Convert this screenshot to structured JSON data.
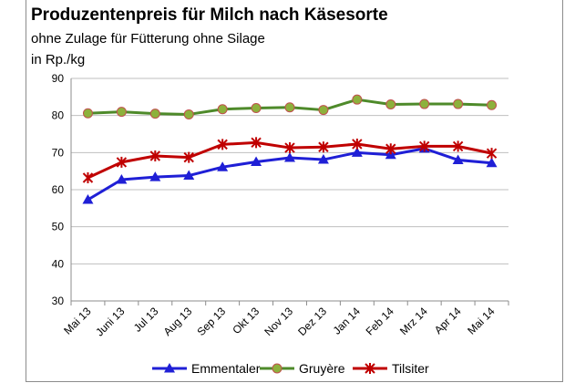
{
  "chart_data": {
    "type": "line",
    "title": "Produzentenpreis für Milch nach Käsesorte",
    "subtitle": "ohne Zulage für Fütterung ohne Silage",
    "ylabel": "in Rp./kg",
    "xlabel": "",
    "ylim": [
      30,
      90
    ],
    "yticks": [
      30,
      40,
      50,
      60,
      70,
      80,
      90
    ],
    "grid": "horizontal",
    "legend_position": "bottom",
    "categories": [
      "Mai 13",
      "Juni 13",
      "Jul 13",
      "Aug 13",
      "Sep 13",
      "Okt 13",
      "Nov 13",
      "Dez 13",
      "Jan 14",
      "Feb 14",
      "Mrz 14",
      "Apr 14",
      "Mai 14"
    ],
    "series": [
      {
        "name": "Emmentaler",
        "color": "#1f1fd6",
        "marker": "triangle",
        "values": [
          57.3,
          62.7,
          63.4,
          63.8,
          66.1,
          67.5,
          68.6,
          68.1,
          70.0,
          69.4,
          71.1,
          68.0,
          67.2
        ]
      },
      {
        "name": "Gruyère",
        "color": "#4e8a2a",
        "marker": "circle",
        "values": [
          80.6,
          81.0,
          80.5,
          80.3,
          81.7,
          82.0,
          82.2,
          81.5,
          84.3,
          83.0,
          83.1,
          83.1,
          82.8
        ]
      },
      {
        "name": "Tilsiter",
        "color": "#c00000",
        "marker": "star",
        "values": [
          63.2,
          67.4,
          69.1,
          68.7,
          72.2,
          72.7,
          71.3,
          71.5,
          72.3,
          71.0,
          71.7,
          71.7,
          69.8
        ]
      }
    ]
  }
}
